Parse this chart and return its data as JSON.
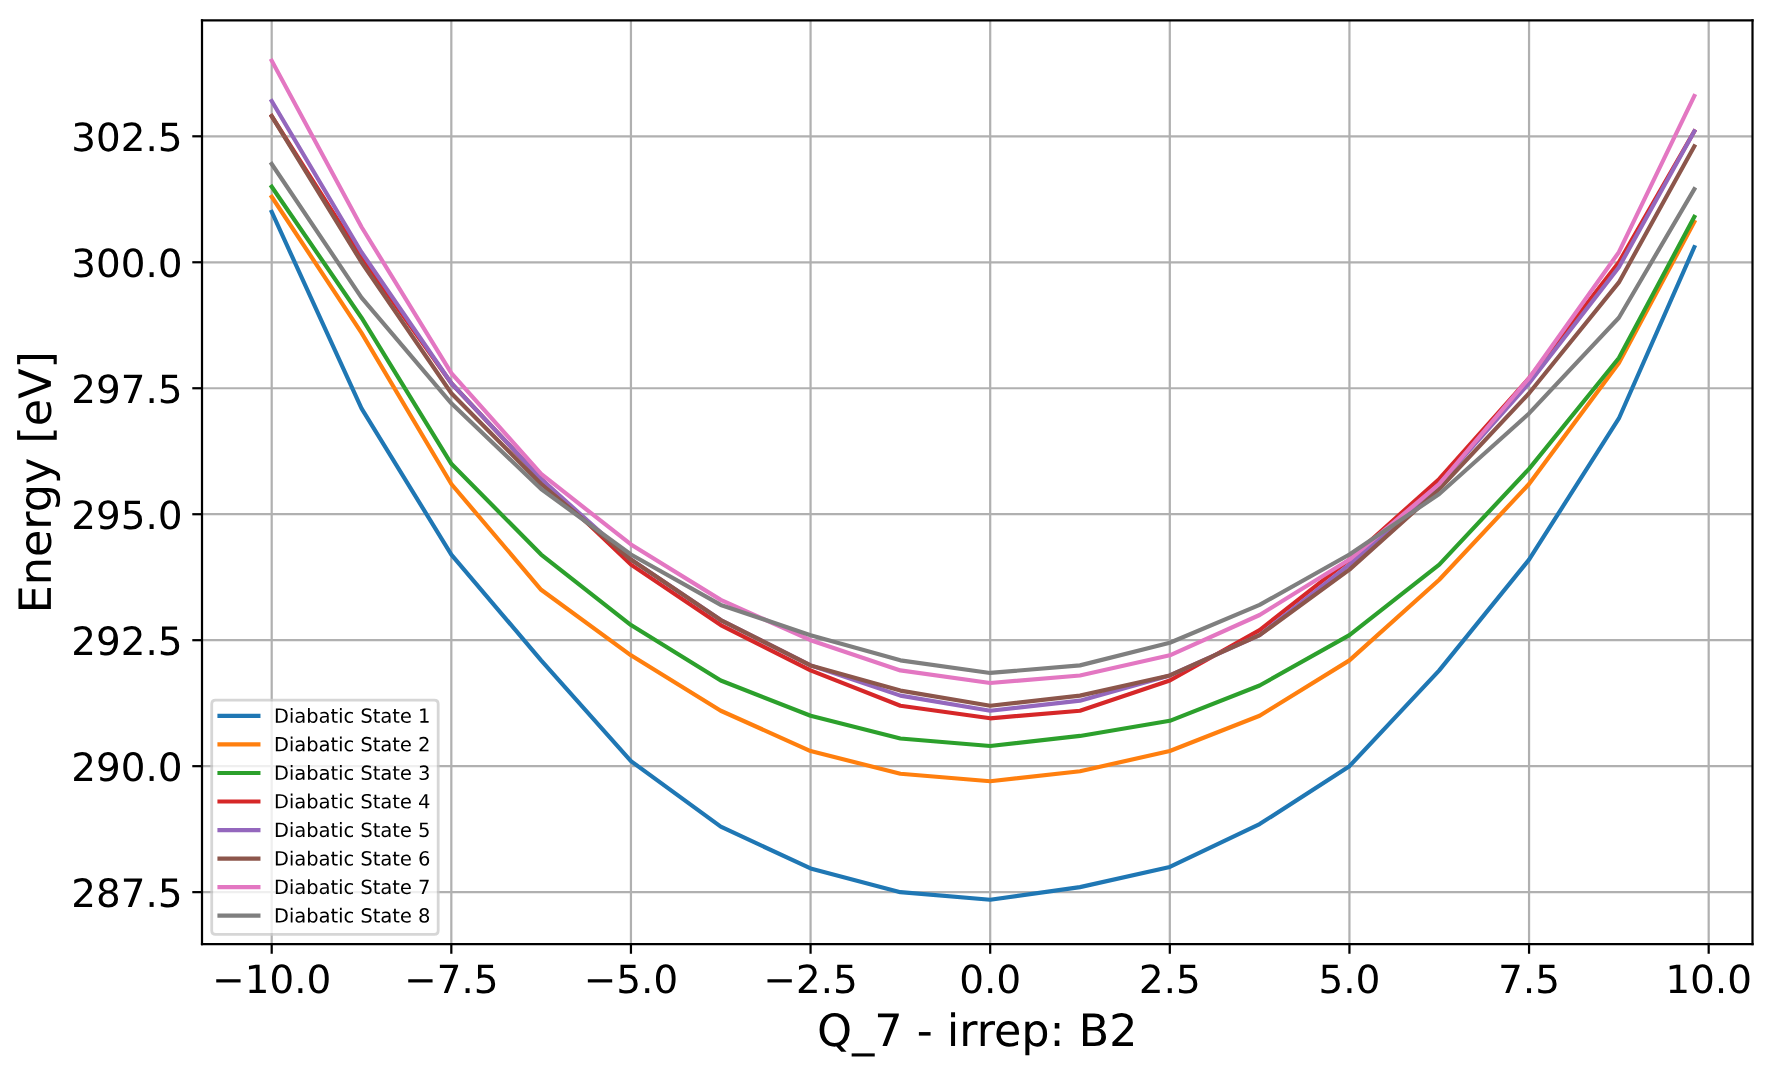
{
  "chart_data": {
    "type": "line",
    "xlabel": "Q_7 - irrep: B2",
    "ylabel": "Energy [eV]",
    "x": [
      -10,
      -8.75,
      -7.5,
      -6.25,
      -5,
      -3.75,
      -2.5,
      -1.25,
      0,
      1.25,
      2.5,
      3.75,
      5,
      6.25,
      7.5,
      8.75,
      9.8
    ],
    "series": [
      {
        "name": "Diabatic State 1",
        "color": "#1f77b4",
        "values": [
          301.0,
          297.1,
          294.2,
          292.1,
          290.1,
          288.8,
          287.97,
          287.5,
          287.35,
          287.6,
          288.0,
          288.85,
          290.0,
          291.9,
          294.1,
          296.9,
          300.3
        ]
      },
      {
        "name": "Diabatic State 2",
        "color": "#ff7f0e",
        "values": [
          301.3,
          298.6,
          295.6,
          293.5,
          292.2,
          291.1,
          290.3,
          289.85,
          289.7,
          289.9,
          290.3,
          291.0,
          292.1,
          293.7,
          295.6,
          298.0,
          300.8
        ]
      },
      {
        "name": "Diabatic State 3",
        "color": "#2ca02c",
        "values": [
          301.5,
          298.9,
          296.0,
          294.2,
          292.8,
          291.7,
          291.0,
          290.55,
          290.4,
          290.6,
          290.9,
          291.6,
          292.6,
          294.0,
          295.9,
          298.1,
          300.9
        ]
      },
      {
        "name": "Diabatic State 4",
        "color": "#d62728",
        "values": [
          302.9,
          300.1,
          297.6,
          295.7,
          294.0,
          292.8,
          291.9,
          291.2,
          290.95,
          291.1,
          291.7,
          292.7,
          294.1,
          295.7,
          297.7,
          300.0,
          302.6
        ]
      },
      {
        "name": "Diabatic State 5",
        "color": "#9467bd",
        "values": [
          303.2,
          300.2,
          297.6,
          295.7,
          294.1,
          292.9,
          292.0,
          291.4,
          291.1,
          291.3,
          291.8,
          292.6,
          294.0,
          295.6,
          297.6,
          299.9,
          302.6
        ]
      },
      {
        "name": "Diabatic State 6",
        "color": "#8c564b",
        "values": [
          302.9,
          300.0,
          297.4,
          295.6,
          294.1,
          292.9,
          292.0,
          291.5,
          291.2,
          291.4,
          291.8,
          292.6,
          293.9,
          295.5,
          297.4,
          299.6,
          302.3
        ]
      },
      {
        "name": "Diabatic State 7",
        "color": "#e377c2",
        "values": [
          304.0,
          300.7,
          297.8,
          295.8,
          294.4,
          293.3,
          292.5,
          291.9,
          291.65,
          291.8,
          292.2,
          293.0,
          294.1,
          295.6,
          297.7,
          300.2,
          303.3
        ]
      },
      {
        "name": "Diabatic State 8",
        "color": "#7f7f7f",
        "values": [
          301.95,
          299.3,
          297.2,
          295.5,
          294.2,
          293.2,
          292.6,
          292.1,
          291.85,
          292.0,
          292.45,
          293.2,
          294.2,
          295.4,
          297.0,
          298.9,
          301.45
        ]
      }
    ],
    "xlim": [
      -10.97,
      10.61
    ],
    "ylim": [
      286.47,
      304.8
    ],
    "xticks": [
      {
        "value": -10,
        "label": "−10.0"
      },
      {
        "value": -7.5,
        "label": "−7.5"
      },
      {
        "value": -5,
        "label": "−5.0"
      },
      {
        "value": -2.5,
        "label": "−2.5"
      },
      {
        "value": 0,
        "label": "0.0"
      },
      {
        "value": 2.5,
        "label": "2.5"
      },
      {
        "value": 5,
        "label": "5.0"
      },
      {
        "value": 7.5,
        "label": "7.5"
      },
      {
        "value": 10,
        "label": "10.0"
      }
    ],
    "yticks": [
      {
        "value": 287.5,
        "label": "287.5"
      },
      {
        "value": 290,
        "label": "290.0"
      },
      {
        "value": 292.5,
        "label": "292.5"
      },
      {
        "value": 295,
        "label": "295.0"
      },
      {
        "value": 297.5,
        "label": "297.5"
      },
      {
        "value": 300,
        "label": "300.0"
      },
      {
        "value": 302.5,
        "label": "302.5"
      }
    ],
    "grid": true,
    "legend": "bottom left"
  }
}
